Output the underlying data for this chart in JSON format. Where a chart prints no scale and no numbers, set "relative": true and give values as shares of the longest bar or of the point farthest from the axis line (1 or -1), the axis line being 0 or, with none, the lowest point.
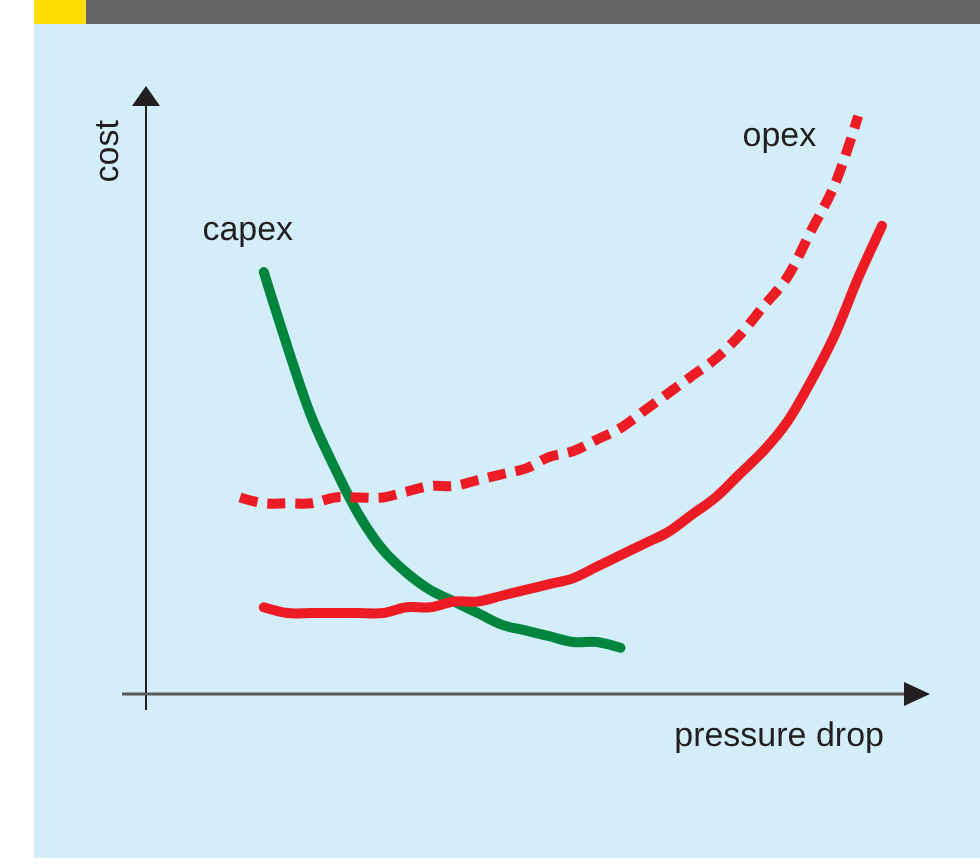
{
  "chart_data": {
    "type": "line",
    "relative": true,
    "xlabel": "pressure drop",
    "ylabel": "cost",
    "categories": [
      null,
      null,
      null,
      null,
      null,
      null,
      null,
      null,
      null,
      null,
      null,
      null,
      null,
      null,
      null,
      null,
      null,
      null,
      null,
      null,
      null,
      null,
      null,
      null,
      null,
      null,
      null,
      null
    ],
    "series": [
      {
        "name": "capex",
        "color": "#00853f",
        "line_style": "solid",
        "values": [
          null,
          0.73,
          0.6,
          0.48,
          0.39,
          0.31,
          0.25,
          0.21,
          0.18,
          0.16,
          0.14,
          0.12,
          0.11,
          0.1,
          0.09,
          0.09,
          0.08,
          null,
          null,
          null,
          null,
          null,
          null,
          null,
          null,
          null,
          null,
          null
        ]
      },
      {
        "name": "opex",
        "color": "#ed1c24",
        "line_style": "dashed",
        "values": [
          0.34,
          0.33,
          0.33,
          0.33,
          0.34,
          0.34,
          0.34,
          0.35,
          0.36,
          0.36,
          0.37,
          0.38,
          0.39,
          0.41,
          0.42,
          0.44,
          0.46,
          0.49,
          0.52,
          0.55,
          0.58,
          0.62,
          0.67,
          0.72,
          0.8,
          0.88,
          1.0,
          null
        ]
      },
      {
        "color": "#ed1c24",
        "line_style": "solid",
        "values": [
          null,
          0.15,
          0.14,
          0.14,
          0.14,
          0.14,
          0.14,
          0.15,
          0.15,
          0.16,
          0.16,
          0.17,
          0.18,
          0.19,
          0.2,
          0.22,
          0.24,
          0.26,
          0.28,
          0.31,
          0.34,
          0.38,
          0.42,
          0.47,
          0.54,
          0.62,
          0.72,
          0.81
        ]
      }
    ]
  }
}
